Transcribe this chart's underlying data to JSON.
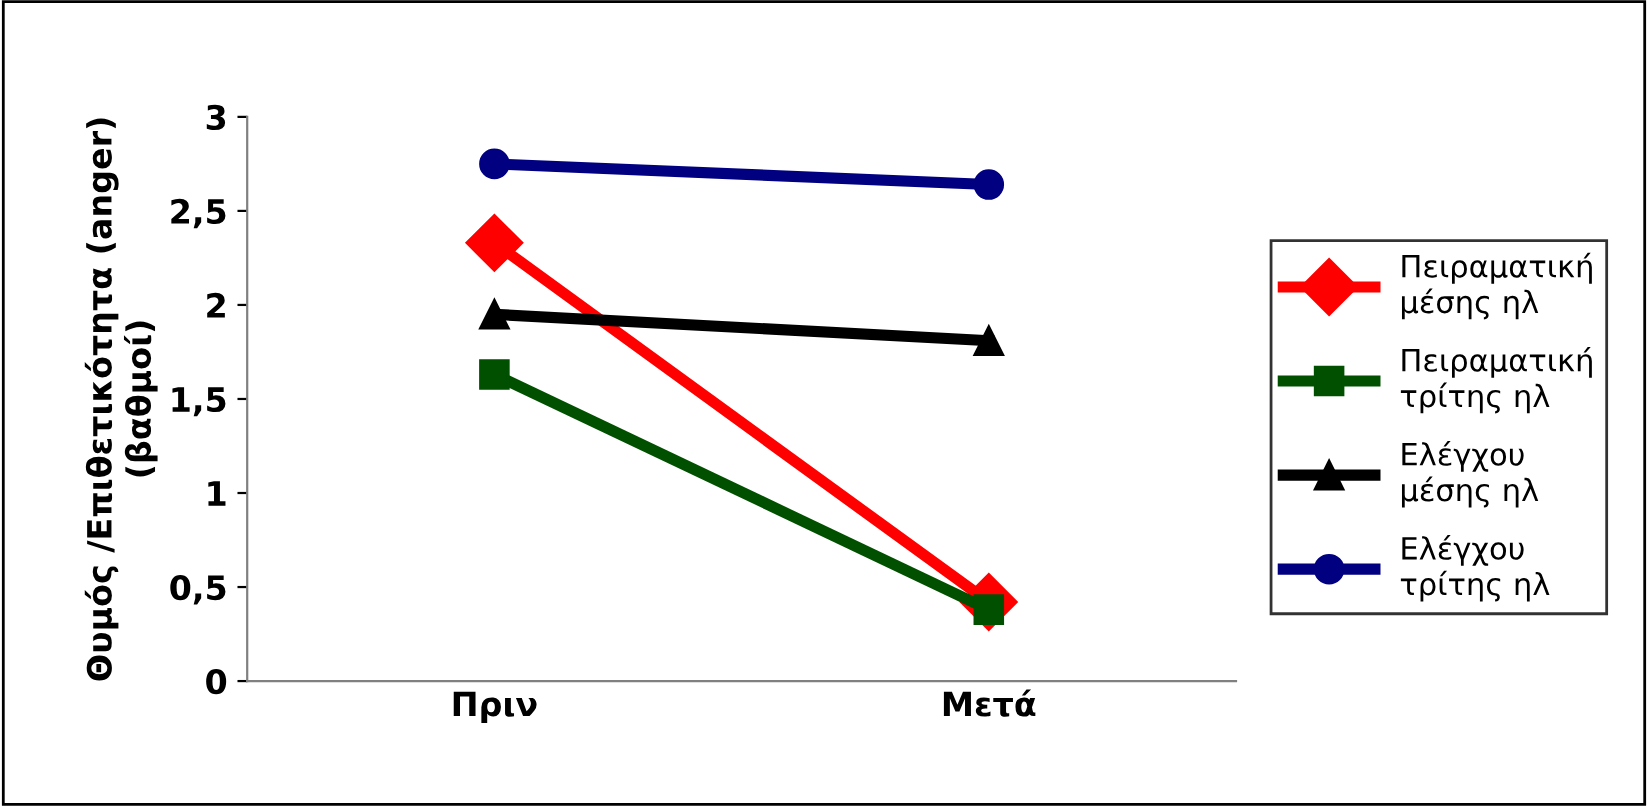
{
  "chart_data": {
    "type": "line",
    "ylabel": "Θυμός /Επιθετικότητα (anger)\n(βαθμοί)",
    "categories": [
      "Πριν",
      "Μετά"
    ],
    "series": [
      {
        "name": "Πειραματική\nμέσης ηλ",
        "color": "#ff0000",
        "marker": "diamond",
        "values": [
          2.33,
          0.42
        ]
      },
      {
        "name": "Πειραματική\nτρίτης ηλ",
        "color": "#005000",
        "marker": "square",
        "values": [
          1.63,
          0.38
        ]
      },
      {
        "name": "Ελέγχου\nμέσης ηλ",
        "color": "#000000",
        "marker": "triangle",
        "values": [
          1.95,
          1.81
        ]
      },
      {
        "name": "Ελέγχου\nτρίτης ηλ",
        "color": "#000080",
        "marker": "circle",
        "values": [
          2.75,
          2.64
        ]
      }
    ],
    "ylim": [
      0,
      3
    ],
    "yticks": [
      0,
      {
        "value": 0.5,
        "label": "0,5"
      },
      1,
      {
        "value": 1.5,
        "label": "1,5"
      },
      2,
      {
        "value": 2.5,
        "label": "2,5"
      },
      3
    ],
    "grid": false,
    "legend": "right",
    "line_style": "solid"
  }
}
